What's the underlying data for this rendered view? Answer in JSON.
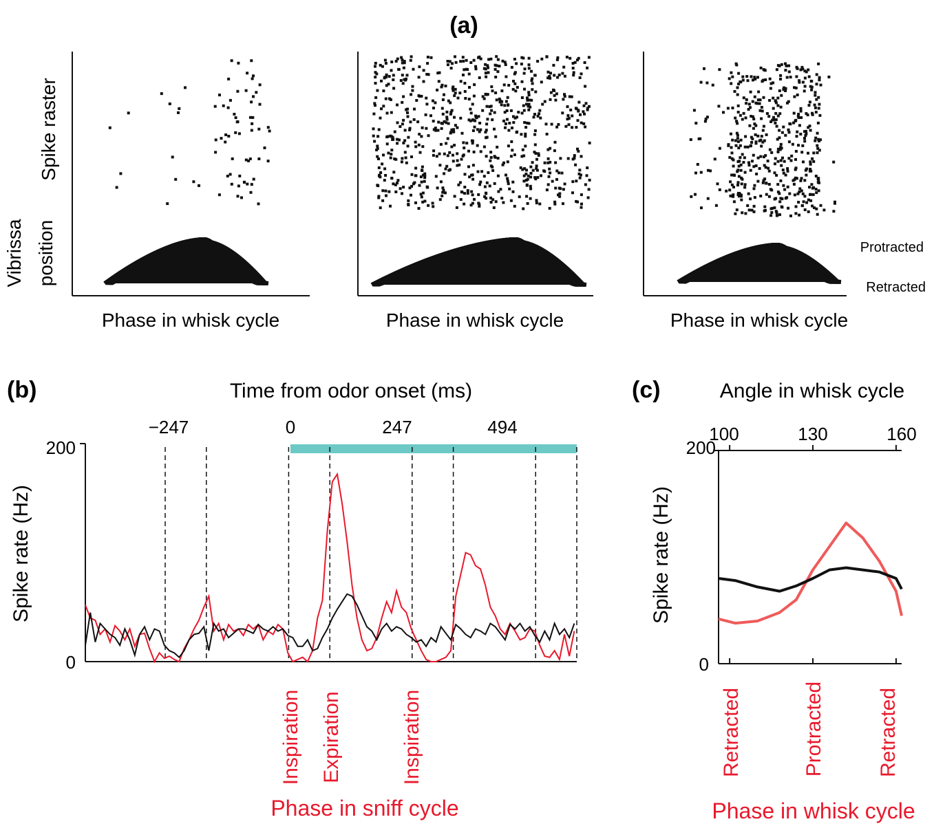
{
  "colors": {
    "red": "#e8192c",
    "salmon": "#ef5b5b",
    "black": "#111111",
    "teal": "#6cc9c6"
  },
  "panel_a": {
    "label": "(a)",
    "ylabel_top": "Spike raster",
    "ylabel_bottom": "Vibrissa position",
    "xlabel": "Phase in whisk cycle",
    "protracted_label": "Protracted",
    "retracted_label": "Retracted"
  },
  "panel_b": {
    "label": "(b)",
    "top_axis_title": "Time from odor onset (ms)",
    "ylabel": "Spike rate (Hz)",
    "xlabel": "Phase in sniff cycle",
    "y_ticks": [
      "200",
      "0"
    ],
    "x_ticks": [
      "−247",
      "0",
      "247",
      "494"
    ],
    "phase_labels": [
      "Inspiration",
      "Expiration",
      "Inspiration"
    ]
  },
  "panel_c": {
    "label": "(c)",
    "top_axis_title": "Angle in whisk cycle",
    "ylabel": "Spike rate (Hz)",
    "xlabel": "Phase in whisk cycle",
    "y_ticks": [
      "200",
      "0"
    ],
    "x_ticks": [
      "100",
      "130",
      "160"
    ],
    "phase_labels": [
      "Retracted",
      "Protracted",
      "Retracted"
    ]
  },
  "chart_data": [
    {
      "type": "scatter",
      "panel": "(a)",
      "xlabel": "Phase in whisk cycle",
      "ylabel": "Spike raster / Vibrissa position",
      "series": [
        {
          "subpanel": 1,
          "spike_density": "sparse"
        },
        {
          "subpanel": 2,
          "spike_density": "dense"
        },
        {
          "subpanel": 3,
          "spike_density": "moderate"
        }
      ]
    },
    {
      "type": "line",
      "panel": "(b)",
      "title": "Time from odor onset (ms)",
      "ylabel": "Spike rate (Hz)",
      "xlabel": "Phase in sniff cycle",
      "xlim": [
        -494,
        700
      ],
      "ylim": [
        0,
        200
      ],
      "odor_period": [
        0,
        700
      ],
      "sniff_event_times_ms": [
        -300,
        -200,
        0,
        100,
        300,
        400,
        600,
        700
      ],
      "x": [
        -494,
        -482,
        -470,
        -458,
        -446,
        -434,
        -422,
        -410,
        -398,
        -386,
        -374,
        -362,
        -350,
        -338,
        -326,
        -314,
        -302,
        -290,
        -278,
        -266,
        -254,
        -242,
        -230,
        -218,
        -206,
        -194,
        -182,
        -170,
        -158,
        -146,
        -134,
        -122,
        -110,
        -98,
        -86,
        -74,
        -62,
        -50,
        -38,
        -26,
        -14,
        -2,
        10,
        22,
        34,
        46,
        58,
        70,
        82,
        94,
        106,
        118,
        130,
        142,
        154,
        166,
        178,
        190,
        202,
        214,
        226,
        238,
        250,
        262,
        274,
        286,
        298,
        310,
        322,
        334,
        346,
        358,
        370,
        382,
        394,
        406,
        418,
        430,
        442,
        454,
        466,
        478,
        490,
        502,
        514,
        526,
        538,
        550,
        562,
        574,
        586,
        598,
        610,
        622,
        634,
        646,
        658,
        670,
        682,
        694
      ],
      "series": [
        {
          "color": "red",
          "values": [
            52,
            40,
            38,
            25,
            30,
            18,
            33,
            28,
            20,
            30,
            14,
            25,
            26,
            12,
            0,
            8,
            3,
            5,
            2,
            0,
            12,
            20,
            30,
            38,
            50,
            60,
            28,
            35,
            20,
            34,
            28,
            30,
            24,
            34,
            30,
            34,
            20,
            28,
            25,
            34,
            30,
            8,
            0,
            2,
            4,
            0,
            10,
            40,
            56,
            120,
            165,
            172,
            145,
            110,
            70,
            40,
            20,
            10,
            12,
            22,
            40,
            55,
            45,
            65,
            50,
            45,
            30,
            20,
            10,
            2,
            0,
            0,
            2,
            4,
            10,
            60,
            80,
            100,
            98,
            88,
            85,
            70,
            50,
            42,
            30,
            25,
            35,
            28,
            20,
            22,
            30,
            28,
            15,
            5,
            4,
            10,
            2,
            25,
            5,
            28
          ]
        },
        {
          "color": "black",
          "values": [
            15,
            45,
            18,
            35,
            30,
            25,
            22,
            15,
            30,
            20,
            6,
            25,
            32,
            20,
            30,
            28,
            15,
            10,
            8,
            4,
            10,
            20,
            25,
            26,
            32,
            10,
            35,
            28,
            30,
            22,
            26,
            30,
            30,
            28,
            26,
            34,
            30,
            28,
            32,
            28,
            30,
            24,
            22,
            14,
            14,
            20,
            10,
            12,
            22,
            30,
            40,
            48,
            55,
            62,
            60,
            52,
            42,
            32,
            28,
            20,
            30,
            35,
            28,
            32,
            30,
            25,
            22,
            18,
            20,
            14,
            22,
            18,
            32,
            26,
            20,
            34,
            30,
            25,
            22,
            30,
            28,
            25,
            35,
            32,
            26,
            20,
            34,
            30,
            35,
            28,
            32,
            24,
            18,
            28,
            20,
            35,
            25,
            30,
            22,
            35
          ]
        }
      ]
    },
    {
      "type": "line",
      "panel": "(c)",
      "title": "Angle in whisk cycle",
      "ylabel": "Spike rate (Hz)",
      "xlabel": "Phase in whisk cycle",
      "xlim": [
        96,
        162
      ],
      "ylim": [
        0,
        200
      ],
      "x": [
        96,
        102,
        110,
        118,
        124,
        130,
        136,
        142,
        148,
        154,
        160,
        162
      ],
      "series": [
        {
          "color": "salmon",
          "values": [
            42,
            38,
            40,
            48,
            60,
            88,
            110,
            132,
            118,
            96,
            68,
            45
          ]
        },
        {
          "color": "black",
          "values": [
            80,
            78,
            72,
            68,
            73,
            80,
            88,
            90,
            88,
            86,
            80,
            70
          ]
        }
      ]
    }
  ]
}
